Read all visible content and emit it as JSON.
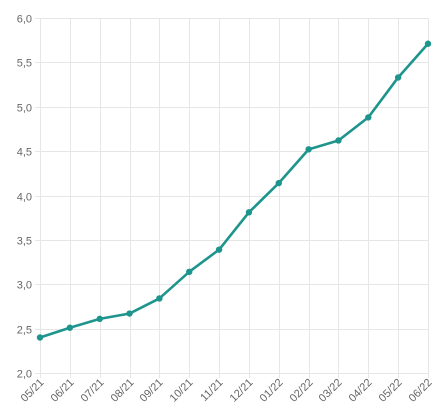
{
  "chart_data": {
    "type": "line",
    "categories": [
      "05/21",
      "06/21",
      "07/21",
      "08/21",
      "09/21",
      "10/21",
      "11/21",
      "12/21",
      "01/22",
      "02/22",
      "03/22",
      "04/22",
      "05/22",
      "06/22"
    ],
    "series": [
      {
        "values": [
          2.4,
          2.51,
          2.61,
          2.67,
          2.84,
          3.14,
          3.39,
          3.81,
          4.14,
          4.52,
          4.62,
          4.88,
          5.33,
          5.71
        ]
      }
    ],
    "y_ticks": [
      "2,0",
      "2,5",
      "3,0",
      "3,5",
      "4,0",
      "4,5",
      "5,0",
      "5,5",
      "6,0"
    ],
    "ylim": [
      2.0,
      6.0
    ],
    "grid": true,
    "colors": {
      "line": "#1e958c",
      "grid": "#e6e6e6",
      "tick_text": "#666666"
    }
  }
}
